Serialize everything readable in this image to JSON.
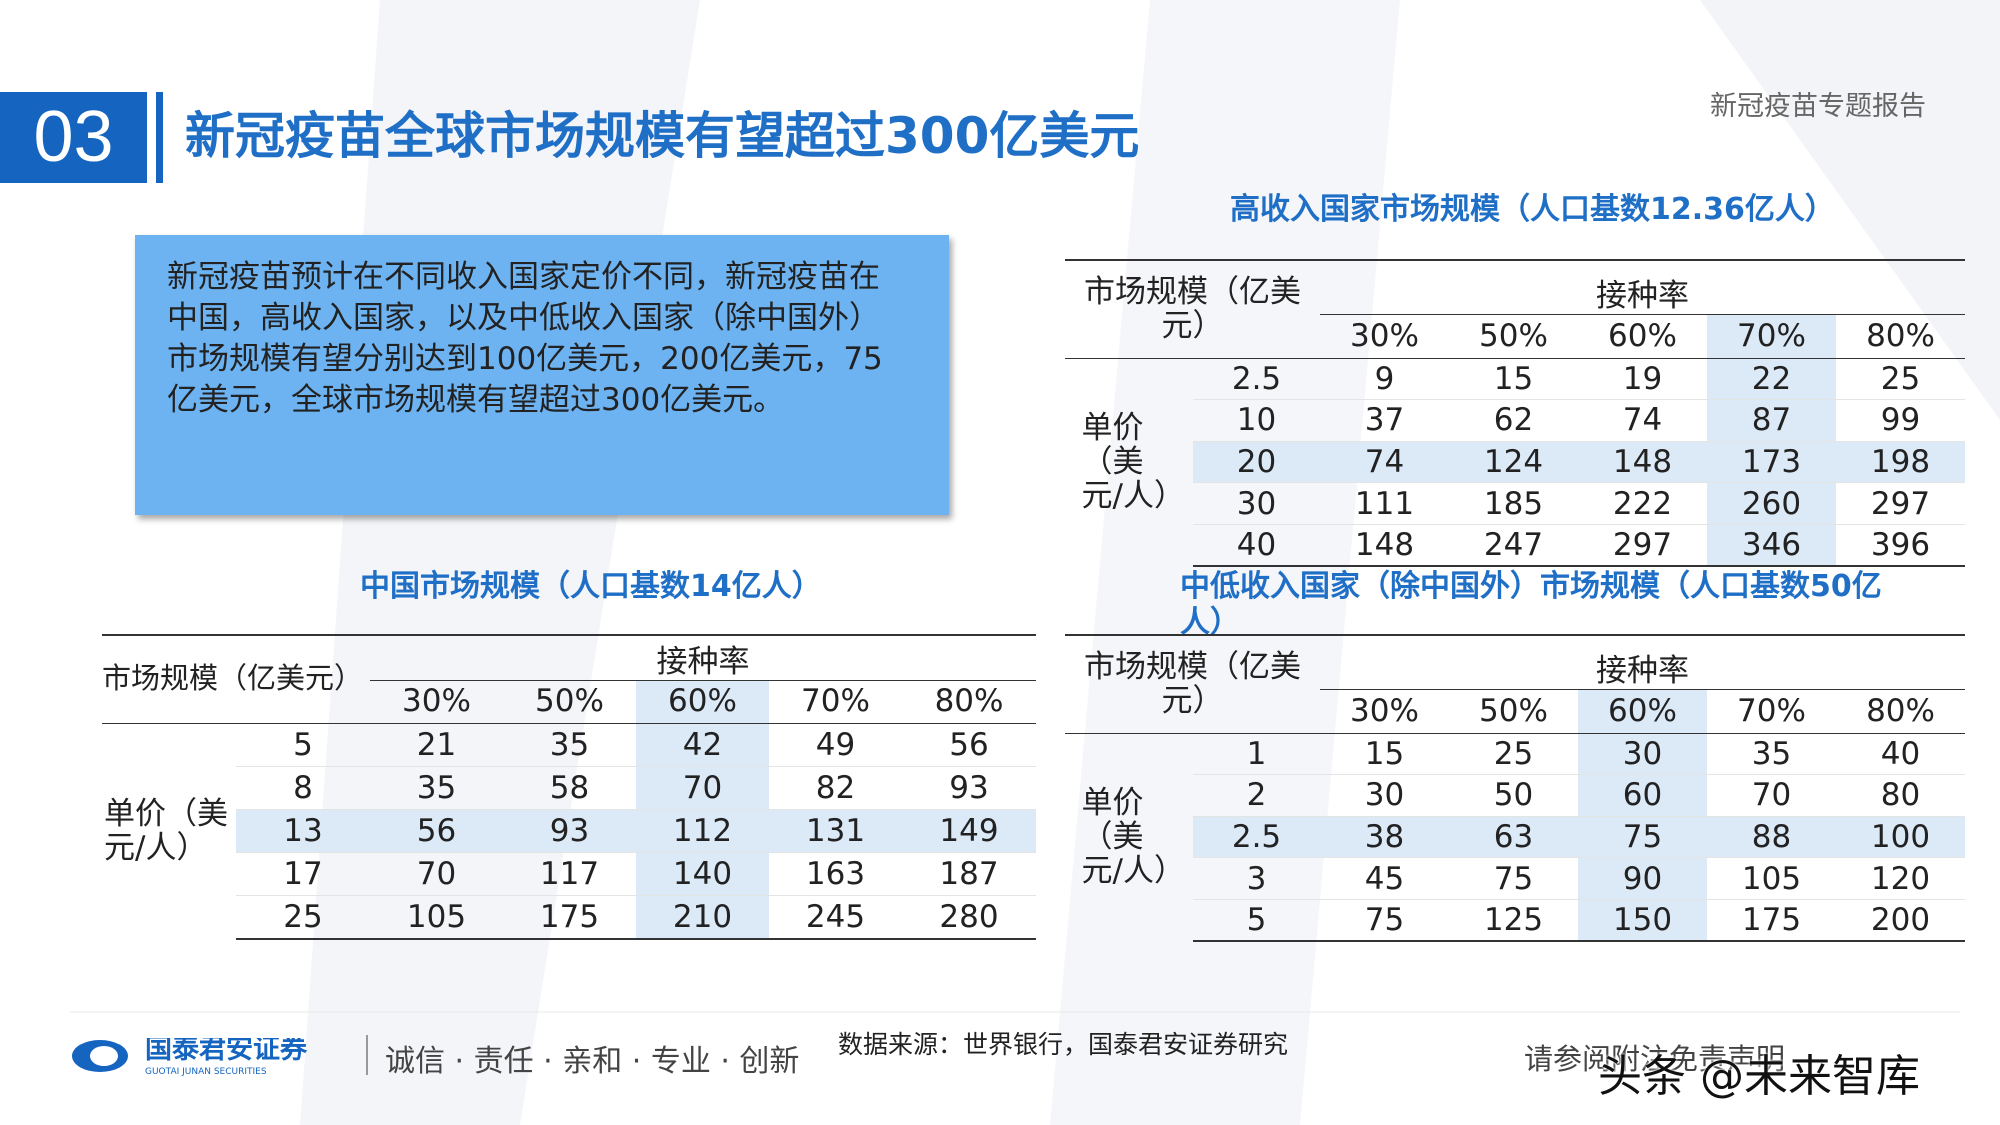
{
  "header": {
    "section": "03",
    "title": "新冠疫苗全球市场规模有望超过300亿美元",
    "report": "新冠疫苗专题报告"
  },
  "callout": "新冠疫苗预计在不同收入国家定价不同，新冠疫苗在中国，高收入国家，以及中低收入国家（除中国外）市场规模有望分别达到100亿美元，200亿美元，75亿美元，全球市场规模有望超过300亿美元。",
  "tables": [
    {
      "title": "高收入国家市场规模（人口基数12.36亿人）",
      "corner": "市场规模（亿美元）",
      "group": "接种率",
      "columns": [
        "30%",
        "50%",
        "60%",
        "70%",
        "80%"
      ],
      "row_header": "单价（美元/人）",
      "rows": [
        {
          "price": 2.5,
          "values": [
            9,
            15,
            19,
            22,
            25
          ]
        },
        {
          "price": 10,
          "values": [
            37,
            62,
            74,
            87,
            99
          ]
        },
        {
          "price": 20,
          "values": [
            74,
            124,
            148,
            173,
            198
          ]
        },
        {
          "price": 30,
          "values": [
            111,
            185,
            222,
            260,
            297
          ]
        },
        {
          "price": 40,
          "values": [
            148,
            247,
            297,
            346,
            396
          ]
        }
      ]
    },
    {
      "title": "中国市场规模（人口基数14亿人）",
      "corner": "市场规模（亿美元）",
      "group": "接种率",
      "columns": [
        "30%",
        "50%",
        "60%",
        "70%",
        "80%"
      ],
      "row_header": "单价（美元/人）",
      "rows": [
        {
          "price": 5,
          "values": [
            21,
            35,
            42,
            49,
            56
          ]
        },
        {
          "price": 8,
          "values": [
            35,
            58,
            70,
            82,
            93
          ]
        },
        {
          "price": 13,
          "values": [
            56,
            93,
            112,
            131,
            149
          ]
        },
        {
          "price": 17,
          "values": [
            70,
            117,
            140,
            163,
            187
          ]
        },
        {
          "price": 25,
          "values": [
            105,
            175,
            210,
            245,
            280
          ]
        }
      ]
    },
    {
      "title": "中低收入国家（除中国外）市场规模（人口基数50亿人）",
      "corner": "市场规模（亿美元）",
      "group": "接种率",
      "columns": [
        "30%",
        "50%",
        "60%",
        "70%",
        "80%"
      ],
      "row_header": "单价（美元/人）",
      "rows": [
        {
          "price": 1,
          "values": [
            15,
            25,
            30,
            35,
            40
          ]
        },
        {
          "price": 2,
          "values": [
            30,
            50,
            60,
            70,
            80
          ]
        },
        {
          "price": 2.5,
          "values": [
            38,
            63,
            75,
            88,
            100
          ]
        },
        {
          "price": 3,
          "values": [
            45,
            75,
            90,
            105,
            120
          ]
        },
        {
          "price": 5,
          "values": [
            75,
            125,
            150,
            175,
            200
          ]
        }
      ]
    }
  ],
  "footer": {
    "company": "国泰君安证券",
    "company_en": "GUOTAI JUNAN SECURITIES",
    "motto": "诚信 · 责任 · 亲和 · 专业 · 创新",
    "source": "数据来源：世界银行，国泰君安证券研究",
    "disclaimer": "请参阅附注免责声明",
    "watermark": "头条 @未来智库"
  }
}
